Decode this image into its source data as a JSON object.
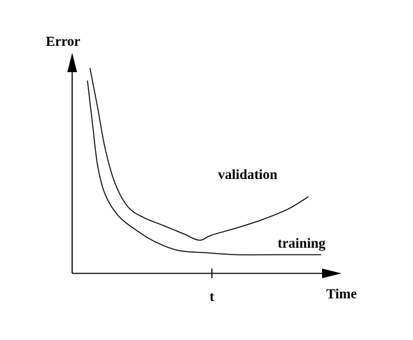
{
  "chart_data": {
    "type": "line",
    "title": "",
    "xlabel": "Time",
    "ylabel": "Error",
    "tick_labels": [
      {
        "label": "t",
        "x": 0.55
      }
    ],
    "xlim": [
      0,
      1
    ],
    "ylim": [
      0,
      1
    ],
    "grid": false,
    "series": [
      {
        "name": "validation",
        "points": [
          [
            0.07,
            0.99
          ],
          [
            0.1,
            0.8
          ],
          [
            0.13,
            0.6
          ],
          [
            0.17,
            0.43
          ],
          [
            0.22,
            0.32
          ],
          [
            0.28,
            0.27
          ],
          [
            0.36,
            0.23
          ],
          [
            0.44,
            0.19
          ],
          [
            0.5,
            0.16
          ],
          [
            0.55,
            0.185
          ],
          [
            0.65,
            0.22
          ],
          [
            0.75,
            0.26
          ],
          [
            0.85,
            0.31
          ],
          [
            0.93,
            0.37
          ]
        ]
      },
      {
        "name": "training",
        "points": [
          [
            0.06,
            0.93
          ],
          [
            0.08,
            0.72
          ],
          [
            0.1,
            0.52
          ],
          [
            0.13,
            0.38
          ],
          [
            0.18,
            0.28
          ],
          [
            0.25,
            0.21
          ],
          [
            0.33,
            0.15
          ],
          [
            0.42,
            0.11
          ],
          [
            0.52,
            0.1
          ],
          [
            0.65,
            0.09
          ],
          [
            0.8,
            0.09
          ],
          [
            0.98,
            0.09
          ]
        ]
      }
    ],
    "annotations": [
      "validation",
      "training"
    ]
  }
}
